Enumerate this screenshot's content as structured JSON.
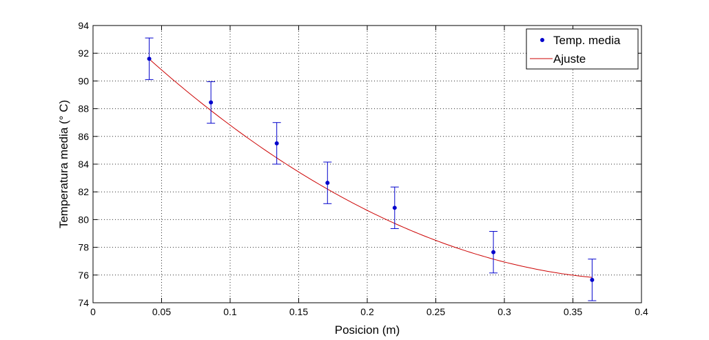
{
  "chart_data": {
    "type": "scatter",
    "xlabel": "Posicion (m)",
    "ylabel": "Temperatura media (° C)",
    "xlim": [
      0,
      0.4
    ],
    "ylim": [
      74,
      94
    ],
    "x_ticks": [
      0,
      0.05,
      0.1,
      0.15,
      0.2,
      0.25,
      0.3,
      0.35,
      0.4
    ],
    "x_tick_labels": [
      "0",
      "0.05",
      "0.1",
      "0.15",
      "0.2",
      "0.25",
      "0.3",
      "0.35",
      "0.4"
    ],
    "y_ticks": [
      74,
      76,
      78,
      80,
      82,
      84,
      86,
      88,
      90,
      92,
      94
    ],
    "y_tick_labels": [
      "74",
      "76",
      "78",
      "80",
      "82",
      "84",
      "86",
      "88",
      "90",
      "92",
      "94"
    ],
    "grid": true,
    "legend_position": "top-right",
    "series": [
      {
        "name": "Temp. media",
        "kind": "scatter-errorbar",
        "color": "#0000cc",
        "x": [
          0.041,
          0.086,
          0.134,
          0.171,
          0.22,
          0.292,
          0.364
        ],
        "y": [
          91.6,
          88.45,
          85.5,
          82.65,
          80.85,
          77.65,
          75.65
        ],
        "error": [
          1.5,
          1.5,
          1.5,
          1.5,
          1.5,
          1.5,
          1.5
        ]
      },
      {
        "name": "Ajuste",
        "kind": "line",
        "color": "#cc0000",
        "x": [
          0.041,
          0.06,
          0.08,
          0.1,
          0.12,
          0.14,
          0.16,
          0.18,
          0.2,
          0.22,
          0.24,
          0.26,
          0.28,
          0.3,
          0.32,
          0.34,
          0.364
        ],
        "y": [
          91.55,
          89.95,
          88.35,
          86.85,
          85.45,
          84.1,
          82.85,
          81.7,
          80.6,
          79.6,
          78.65,
          77.8,
          77.95,
          77.25,
          76.6,
          76.05,
          75.65
        ]
      }
    ]
  }
}
